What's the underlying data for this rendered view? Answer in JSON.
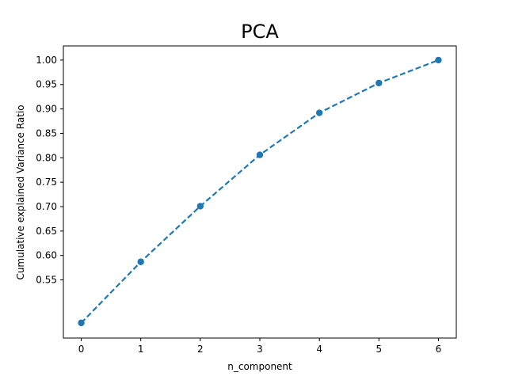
{
  "chart_data": {
    "type": "line",
    "title": "PCA",
    "xlabel": "n_component",
    "ylabel": "Cumulative explained Variance Ratio",
    "x": [
      0,
      1,
      2,
      3,
      4,
      5,
      6
    ],
    "series": [
      {
        "values": [
          0.462,
          0.587,
          0.701,
          0.806,
          0.892,
          0.953,
          1.0
        ],
        "color": "#1f77b4",
        "line_style": "dashed",
        "marker": "circle"
      }
    ],
    "xlim": [
      -0.3,
      6.3
    ],
    "ylim": [
      0.431,
      1.029
    ],
    "x_ticks": [
      "0",
      "1",
      "2",
      "3",
      "4",
      "5",
      "6"
    ],
    "y_ticks": [
      "0.55",
      "0.60",
      "0.65",
      "0.70",
      "0.75",
      "0.80",
      "0.85",
      "0.90",
      "0.95",
      "1.00"
    ],
    "grid": false,
    "legend": "none"
  }
}
